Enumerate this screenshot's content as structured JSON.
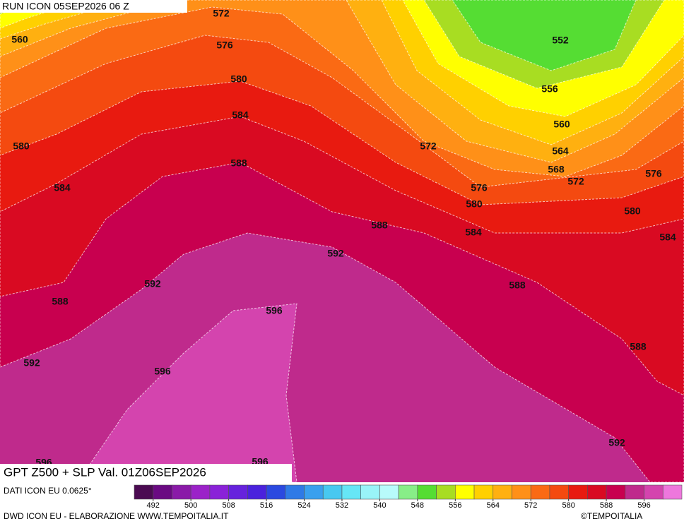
{
  "header": {
    "run": "RUN ICON 05SEP2026 06 Z",
    "title": "GPT Z500 + SLP Val. 01Z06SEP2026"
  },
  "map": {
    "contour_labels": [
      572,
      576,
      580,
      584,
      588,
      560,
      580,
      584,
      552,
      556,
      560,
      564,
      568,
      572,
      576,
      572,
      576,
      580,
      580,
      584,
      584,
      588,
      592,
      592,
      588,
      596,
      592,
      596,
      588,
      588,
      592,
      596,
      596
    ]
  },
  "colorbar": {
    "colors": [
      "#4b0b52",
      "#6a0a82",
      "#8a1aa8",
      "#9b22c8",
      "#8a22d8",
      "#6622dd",
      "#4a22dd",
      "#2b49e0",
      "#2f7ae6",
      "#3aa0ee",
      "#48c8f0",
      "#66e6f6",
      "#99f4f8",
      "#b8fbfb",
      "#88ee88",
      "#55dd33",
      "#a8dd22",
      "#ffff00",
      "#ffd000",
      "#ffb010",
      "#ff9018",
      "#fa6a14",
      "#f44a10",
      "#e81a10",
      "#d90a22",
      "#c8004f",
      "#bf2a8c",
      "#d444ae",
      "#ee77dd"
    ],
    "range": [
      488,
      604
    ],
    "ticks": [
      492,
      500,
      508,
      516,
      524,
      532,
      540,
      548,
      556,
      564,
      572,
      580,
      588,
      596
    ]
  },
  "footer": {
    "source": "DATI ICON EU 0.0625°",
    "credit": "DWD ICON EU - ELABORAZIONE WWW.TEMPOITALIA.IT",
    "brand": "©TEMPOITALIA"
  }
}
